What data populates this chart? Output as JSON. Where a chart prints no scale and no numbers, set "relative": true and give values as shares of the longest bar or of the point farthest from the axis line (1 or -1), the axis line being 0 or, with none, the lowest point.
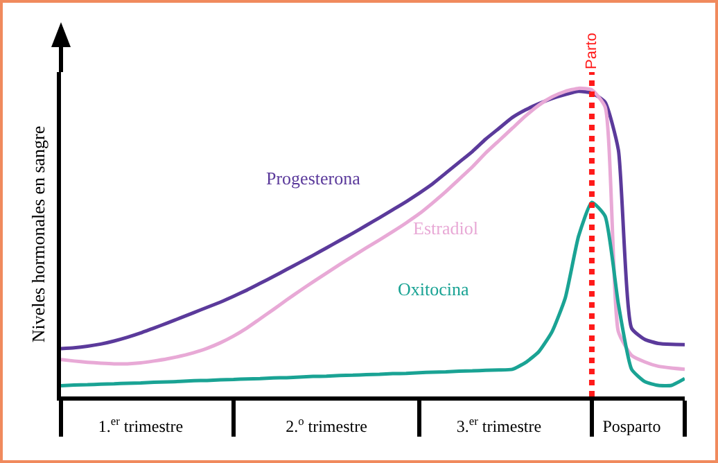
{
  "chart_data": {
    "type": "line",
    "relative": true,
    "ylabel": "Niveles hormonales en sangre",
    "grid": false,
    "legend": false,
    "marker": "none",
    "line_style": "solid",
    "tick_labels": "x",
    "categories": [
      null,
      null,
      null,
      null,
      null,
      null,
      "1.$^{er}$ trimestre",
      null,
      null,
      null,
      null,
      null,
      null,
      null,
      null,
      null,
      null,
      null,
      null,
      null,
      "2.$^{o}$ trimestre",
      null,
      null,
      null,
      null,
      null,
      null,
      null,
      null,
      null,
      null,
      null,
      null,
      "3.$^{er}$ trimestre",
      null,
      null,
      null,
      null,
      null,
      null,
      null,
      null,
      null,
      "Posparto",
      null,
      null,
      null,
      null
    ],
    "annotations": [
      "Parto"
    ],
    "series": [
      {
        "name": "Progesterona",
        "color": "#5b3a9b",
        "values": [
          0.155,
          0.158,
          0.163,
          0.17,
          0.18,
          0.192,
          0.206,
          0.222,
          0.238,
          0.255,
          0.272,
          0.289,
          0.306,
          0.325,
          0.345,
          0.367,
          0.389,
          0.412,
          0.435,
          0.458,
          0.482,
          0.506,
          0.53,
          0.555,
          0.58,
          0.606,
          0.632,
          0.66,
          0.69,
          0.725,
          0.76,
          0.795,
          0.835,
          0.87,
          0.905,
          0.93,
          0.95,
          0.967,
          0.98,
          0.99,
          0.985,
          0.955,
          0.8,
          0.221,
          0.185,
          0.172,
          0.169,
          0.168
        ]
      },
      {
        "name": "Estradiol",
        "color": "#e8a9d6",
        "values": [
          0.12,
          0.115,
          0.111,
          0.108,
          0.106,
          0.106,
          0.109,
          0.115,
          0.122,
          0.131,
          0.142,
          0.156,
          0.174,
          0.196,
          0.222,
          0.252,
          0.282,
          0.313,
          0.343,
          0.372,
          0.4,
          0.428,
          0.455,
          0.482,
          0.508,
          0.535,
          0.563,
          0.593,
          0.628,
          0.665,
          0.705,
          0.745,
          0.79,
          0.83,
          0.87,
          0.91,
          0.945,
          0.972,
          0.99,
          1.0,
          0.995,
          0.94,
          0.21,
          0.133,
          0.112,
          0.098,
          0.092,
          0.088
        ]
      },
      {
        "name": "Oxitocina",
        "color": "#1aa394",
        "values": [
          0.035,
          0.037,
          0.038,
          0.04,
          0.041,
          0.043,
          0.044,
          0.046,
          0.047,
          0.049,
          0.051,
          0.052,
          0.054,
          0.055,
          0.057,
          0.058,
          0.06,
          0.061,
          0.063,
          0.065,
          0.066,
          0.068,
          0.069,
          0.071,
          0.072,
          0.074,
          0.075,
          0.077,
          0.079,
          0.08,
          0.082,
          0.083,
          0.085,
          0.086,
          0.088,
          0.11,
          0.145,
          0.21,
          0.32,
          0.52,
          0.63,
          0.585,
          0.3,
          0.088,
          0.048,
          0.036,
          0.036,
          0.058
        ]
      }
    ]
  }
}
